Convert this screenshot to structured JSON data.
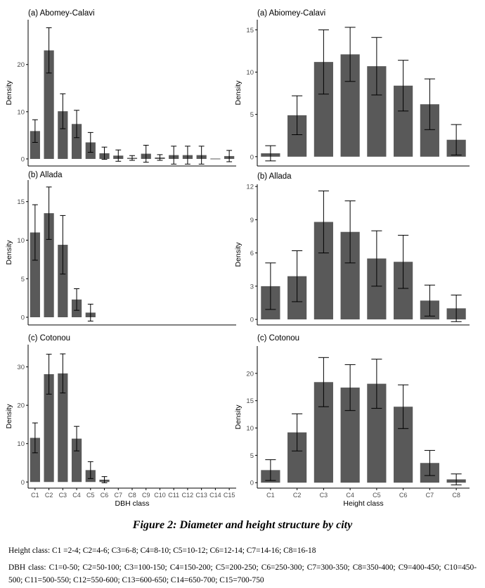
{
  "caption": "Figure 2: Diameter and height structure by city",
  "height_note": "Height class: C1 =2-4; C2=4-6; C3=6-8; C4=8-10; C5=10-12; C6=12-14; C7=14-16; C8=16-18",
  "dbh_note": "DBH class: C1=0-50; C2=50-100; C3=100-150; C4=150-200; C5=200-250; C6=250-300; C7=300-350; C8=350-400; C9=400-450; C10=450-500; C11=500-550; C12=550-600; C13=600-650; C14=650-700; C15=700-750",
  "colors": {
    "bar": "#595959",
    "axis": "#000000"
  },
  "chart_data": [
    {
      "type": "bar",
      "title": "(a) Abomey-Calavi",
      "ylabel": "Density",
      "xlabel": "",
      "categories": [
        "C1",
        "C2",
        "C3",
        "C4",
        "C5",
        "C6",
        "C7",
        "C8",
        "C9",
        "C10",
        "C11",
        "C12",
        "C13",
        "C14",
        "C15"
      ],
      "values": [
        5.9,
        23.0,
        10.1,
        7.4,
        3.5,
        1.2,
        0.7,
        0.2,
        1.1,
        0.3,
        0.8,
        0.8,
        0.8,
        0.0,
        0.6
      ],
      "errors": [
        2.4,
        4.8,
        3.7,
        2.9,
        2.1,
        1.3,
        1.2,
        0.5,
        1.8,
        0.6,
        1.9,
        1.9,
        1.9,
        0.0,
        1.2
      ],
      "ylim": [
        -1.5,
        29.5
      ],
      "yticks": [
        0,
        10,
        20
      ],
      "show_xticks": false
    },
    {
      "type": "bar",
      "title": "(b) Allada",
      "ylabel": "Density",
      "xlabel": "",
      "categories": [
        "C1",
        "C2",
        "C3",
        "C4",
        "C5",
        "C6",
        "C7",
        "C8",
        "C9",
        "C10",
        "C11",
        "C12",
        "C13",
        "C14",
        "C15"
      ],
      "values": [
        11.0,
        13.5,
        9.4,
        2.3,
        0.6,
        0,
        0,
        0,
        0,
        0,
        0,
        0,
        0,
        0,
        0
      ],
      "errors": [
        3.6,
        3.4,
        3.8,
        1.4,
        1.1,
        0,
        0,
        0,
        0,
        0,
        0,
        0,
        0,
        0,
        0
      ],
      "ylim": [
        -1.0,
        17.8
      ],
      "yticks": [
        0,
        5,
        10,
        15
      ],
      "show_xticks": false
    },
    {
      "type": "bar",
      "title": "(c) Cotonou",
      "ylabel": "Density",
      "xlabel": "DBH class",
      "categories": [
        "C1",
        "C2",
        "C3",
        "C4",
        "C5",
        "C6",
        "C7",
        "C8",
        "C9",
        "C10",
        "C11",
        "C12",
        "C13",
        "C14",
        "C15"
      ],
      "values": [
        11.5,
        28.1,
        28.3,
        11.3,
        3.1,
        0.6,
        0,
        0,
        0,
        0,
        0,
        0,
        0,
        0,
        0
      ],
      "errors": [
        3.9,
        5.2,
        5.1,
        3.2,
        2.2,
        0.8,
        0,
        0,
        0,
        0,
        0,
        0,
        0,
        0,
        0
      ],
      "ylim": [
        -1.6,
        35.8
      ],
      "yticks": [
        0,
        10,
        20,
        30
      ],
      "show_xticks": true
    },
    {
      "type": "bar",
      "title": "(a) Abiomey-Calavi",
      "ylabel": "Density",
      "xlabel": "",
      "categories": [
        "C1",
        "C2",
        "C3",
        "C4",
        "C5",
        "C6",
        "C7",
        "C8"
      ],
      "values": [
        0.4,
        4.9,
        11.2,
        12.1,
        10.7,
        8.4,
        6.2,
        2.0
      ],
      "errors": [
        0.9,
        2.3,
        3.8,
        3.2,
        3.4,
        3.0,
        3.0,
        1.8
      ],
      "ylim": [
        -1.1,
        16.2
      ],
      "yticks": [
        0,
        5,
        10,
        15
      ],
      "show_xticks": false
    },
    {
      "type": "bar",
      "title": "(b) Allada",
      "ylabel": "Density",
      "xlabel": "",
      "categories": [
        "C1",
        "C2",
        "C3",
        "C4",
        "C5",
        "C6",
        "C7",
        "C8"
      ],
      "values": [
        3.0,
        3.9,
        8.8,
        7.9,
        5.5,
        5.2,
        1.7,
        1.0
      ],
      "errors": [
        2.1,
        2.3,
        2.8,
        2.8,
        2.5,
        2.4,
        1.4,
        1.2
      ],
      "ylim": [
        -0.5,
        12.2
      ],
      "yticks": [
        0,
        3,
        6,
        9,
        12
      ],
      "show_xticks": false
    },
    {
      "type": "bar",
      "title": "(c) Cotonou",
      "ylabel": "Density",
      "xlabel": "Height class",
      "categories": [
        "C1",
        "C2",
        "C3",
        "C4",
        "C5",
        "C6",
        "C7",
        "C8"
      ],
      "values": [
        2.3,
        9.2,
        18.4,
        17.4,
        18.1,
        13.9,
        3.6,
        0.6
      ],
      "errors": [
        1.9,
        3.4,
        4.5,
        4.2,
        4.5,
        4.0,
        2.3,
        1.0
      ],
      "ylim": [
        -1.0,
        25.0
      ],
      "yticks": [
        0,
        5,
        10,
        15,
        20
      ],
      "show_xticks": true
    }
  ]
}
